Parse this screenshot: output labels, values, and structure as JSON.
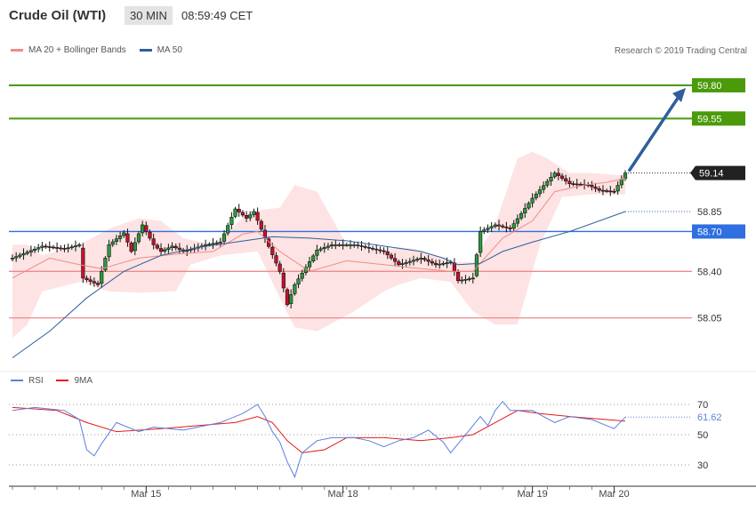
{
  "header": {
    "title": "Crude Oil (WTI)",
    "interval": "30 MIN",
    "time": "08:59:49 CET"
  },
  "legend": {
    "items": [
      {
        "label": "MA 20 + Bollinger Bands",
        "color": "#f08a8a"
      },
      {
        "label": "MA 50",
        "color": "#2e5f9b"
      }
    ]
  },
  "copyright": "Research © 2019 Trading Central",
  "rsi_legend": {
    "items": [
      {
        "label": "RSI",
        "color": "#5b7fe0"
      },
      {
        "label": "9MA",
        "color": "#e41a1a"
      }
    ]
  },
  "chart_data": {
    "type": "candlestick",
    "x_ticks": [
      "Mar 15",
      "Mar 18",
      "Mar 19",
      "Mar 20"
    ],
    "price_range": [
      57.7,
      59.92
    ],
    "levels": [
      {
        "value": 59.8,
        "label": "59.80",
        "color": "#4a9a0a",
        "kind": "resistance"
      },
      {
        "value": 59.55,
        "label": "59.55",
        "color": "#4a9a0a",
        "kind": "resistance"
      },
      {
        "value": 58.7,
        "label": "58.70",
        "color": "#2f6fe0",
        "kind": "pivot"
      },
      {
        "value": 58.4,
        "label": "58.40",
        "color": "#f08a8a",
        "kind": "support"
      },
      {
        "value": 58.05,
        "label": "58.05",
        "color": "#f08a8a",
        "kind": "support"
      }
    ],
    "last_price": {
      "value": 59.14,
      "label": "59.14"
    },
    "ma50_last": {
      "value": 58.85,
      "label": "58.85"
    },
    "target": {
      "from": 59.14,
      "to": 59.8
    },
    "close_path": [
      [
        0,
        58.5
      ],
      [
        8,
        58.59
      ],
      [
        14,
        58.57
      ],
      [
        18,
        58.6
      ],
      [
        19,
        58.35
      ],
      [
        23,
        58.3
      ],
      [
        26,
        58.6
      ],
      [
        30,
        58.69
      ],
      [
        32,
        58.55
      ],
      [
        35,
        58.75
      ],
      [
        38,
        58.6
      ],
      [
        40,
        58.55
      ],
      [
        43,
        58.59
      ],
      [
        46,
        58.55
      ],
      [
        52,
        58.6
      ],
      [
        56,
        58.62
      ],
      [
        60,
        58.87
      ],
      [
        63,
        58.8
      ],
      [
        65,
        58.85
      ],
      [
        68,
        58.65
      ],
      [
        72,
        58.4
      ],
      [
        74,
        58.15
      ],
      [
        76,
        58.3
      ],
      [
        82,
        58.56
      ],
      [
        86,
        58.6
      ],
      [
        92,
        58.6
      ],
      [
        100,
        58.55
      ],
      [
        104,
        58.45
      ],
      [
        110,
        58.5
      ],
      [
        114,
        58.45
      ],
      [
        118,
        58.47
      ],
      [
        120,
        58.33
      ],
      [
        124,
        58.35
      ],
      [
        126,
        58.7
      ],
      [
        130,
        58.75
      ],
      [
        134,
        58.72
      ],
      [
        140,
        58.95
      ],
      [
        146,
        59.14
      ],
      [
        150,
        59.06
      ],
      [
        155,
        59.05
      ],
      [
        158,
        59.01
      ],
      [
        162,
        59.0
      ],
      [
        165,
        59.14
      ]
    ],
    "ma20_path": [
      [
        0,
        58.35
      ],
      [
        10,
        58.5
      ],
      [
        18,
        58.45
      ],
      [
        24,
        58.42
      ],
      [
        34,
        58.5
      ],
      [
        44,
        58.53
      ],
      [
        54,
        58.55
      ],
      [
        62,
        58.68
      ],
      [
        66,
        58.7
      ],
      [
        72,
        58.55
      ],
      [
        80,
        58.4
      ],
      [
        90,
        58.48
      ],
      [
        100,
        58.45
      ],
      [
        110,
        58.42
      ],
      [
        118,
        58.4
      ],
      [
        124,
        58.4
      ],
      [
        132,
        58.65
      ],
      [
        140,
        58.78
      ],
      [
        146,
        59.0
      ],
      [
        154,
        59.05
      ],
      [
        160,
        59.07
      ],
      [
        165,
        59.1
      ]
    ],
    "bb_upper_path": [
      [
        0,
        58.6
      ],
      [
        4,
        58.6
      ],
      [
        8,
        58.52
      ],
      [
        18,
        58.6
      ],
      [
        26,
        58.72
      ],
      [
        34,
        58.8
      ],
      [
        40,
        58.78
      ],
      [
        46,
        58.65
      ],
      [
        54,
        58.6
      ],
      [
        64,
        58.85
      ],
      [
        72,
        58.88
      ],
      [
        76,
        59.05
      ],
      [
        82,
        59.0
      ],
      [
        90,
        58.6
      ],
      [
        98,
        58.55
      ],
      [
        104,
        58.58
      ],
      [
        108,
        58.57
      ],
      [
        114,
        58.52
      ],
      [
        118,
        58.47
      ],
      [
        124,
        58.47
      ],
      [
        130,
        58.75
      ],
      [
        136,
        59.25
      ],
      [
        140,
        59.3
      ],
      [
        144,
        59.25
      ],
      [
        150,
        59.14
      ],
      [
        156,
        59.14
      ],
      [
        165,
        59.12
      ]
    ],
    "bb_lower_path": [
      [
        0,
        57.9
      ],
      [
        4,
        58.0
      ],
      [
        8,
        58.25
      ],
      [
        18,
        58.32
      ],
      [
        26,
        58.25
      ],
      [
        34,
        58.24
      ],
      [
        44,
        58.25
      ],
      [
        48,
        58.45
      ],
      [
        56,
        58.52
      ],
      [
        66,
        58.55
      ],
      [
        72,
        58.2
      ],
      [
        76,
        57.98
      ],
      [
        82,
        57.95
      ],
      [
        92,
        58.1
      ],
      [
        100,
        58.25
      ],
      [
        104,
        58.3
      ],
      [
        110,
        58.35
      ],
      [
        118,
        58.32
      ],
      [
        124,
        58.1
      ],
      [
        130,
        58.0
      ],
      [
        136,
        58.0
      ],
      [
        142,
        58.6
      ],
      [
        148,
        58.96
      ],
      [
        156,
        58.98
      ],
      [
        165,
        58.98
      ]
    ],
    "ma50_path": [
      [
        0,
        57.75
      ],
      [
        10,
        57.95
      ],
      [
        20,
        58.2
      ],
      [
        30,
        58.4
      ],
      [
        40,
        58.52
      ],
      [
        50,
        58.58
      ],
      [
        60,
        58.62
      ],
      [
        70,
        58.66
      ],
      [
        80,
        58.65
      ],
      [
        90,
        58.63
      ],
      [
        100,
        58.59
      ],
      [
        110,
        58.55
      ],
      [
        116,
        58.5
      ],
      [
        120,
        58.45
      ],
      [
        126,
        58.46
      ],
      [
        132,
        58.55
      ],
      [
        140,
        58.62
      ],
      [
        150,
        58.7
      ],
      [
        160,
        58.8
      ],
      [
        165,
        58.85
      ]
    ],
    "rsi": {
      "range": [
        20,
        80
      ],
      "ticks": [
        "70",
        "50",
        "30"
      ],
      "last": {
        "value": 61.62,
        "label": "61.62"
      },
      "rsi_path": [
        [
          0,
          66
        ],
        [
          6,
          68
        ],
        [
          14,
          66
        ],
        [
          18,
          60
        ],
        [
          20,
          40
        ],
        [
          22,
          36
        ],
        [
          24,
          44
        ],
        [
          28,
          58
        ],
        [
          34,
          52
        ],
        [
          38,
          55
        ],
        [
          46,
          53
        ],
        [
          56,
          58
        ],
        [
          62,
          64
        ],
        [
          66,
          70
        ],
        [
          68,
          62
        ],
        [
          70,
          52
        ],
        [
          72,
          45
        ],
        [
          74,
          32
        ],
        [
          76,
          22
        ],
        [
          78,
          38
        ],
        [
          82,
          46
        ],
        [
          86,
          48
        ],
        [
          92,
          48
        ],
        [
          96,
          46
        ],
        [
          100,
          42
        ],
        [
          104,
          46
        ],
        [
          108,
          48
        ],
        [
          112,
          53
        ],
        [
          116,
          45
        ],
        [
          118,
          38
        ],
        [
          120,
          44
        ],
        [
          124,
          56
        ],
        [
          126,
          62
        ],
        [
          128,
          56
        ],
        [
          130,
          66
        ],
        [
          132,
          72
        ],
        [
          134,
          66
        ],
        [
          140,
          66
        ],
        [
          146,
          58
        ],
        [
          150,
          62
        ],
        [
          156,
          60
        ],
        [
          160,
          56
        ],
        [
          162,
          54
        ],
        [
          165,
          61.62
        ]
      ],
      "ma9_path": [
        [
          0,
          68
        ],
        [
          12,
          66
        ],
        [
          20,
          58
        ],
        [
          28,
          52
        ],
        [
          40,
          54
        ],
        [
          60,
          58
        ],
        [
          66,
          62
        ],
        [
          70,
          58
        ],
        [
          74,
          46
        ],
        [
          78,
          38
        ],
        [
          84,
          40
        ],
        [
          90,
          48
        ],
        [
          100,
          48
        ],
        [
          110,
          46
        ],
        [
          118,
          48
        ],
        [
          124,
          50
        ],
        [
          130,
          58
        ],
        [
          136,
          66
        ],
        [
          142,
          64
        ],
        [
          150,
          62
        ],
        [
          165,
          59
        ]
      ]
    }
  }
}
